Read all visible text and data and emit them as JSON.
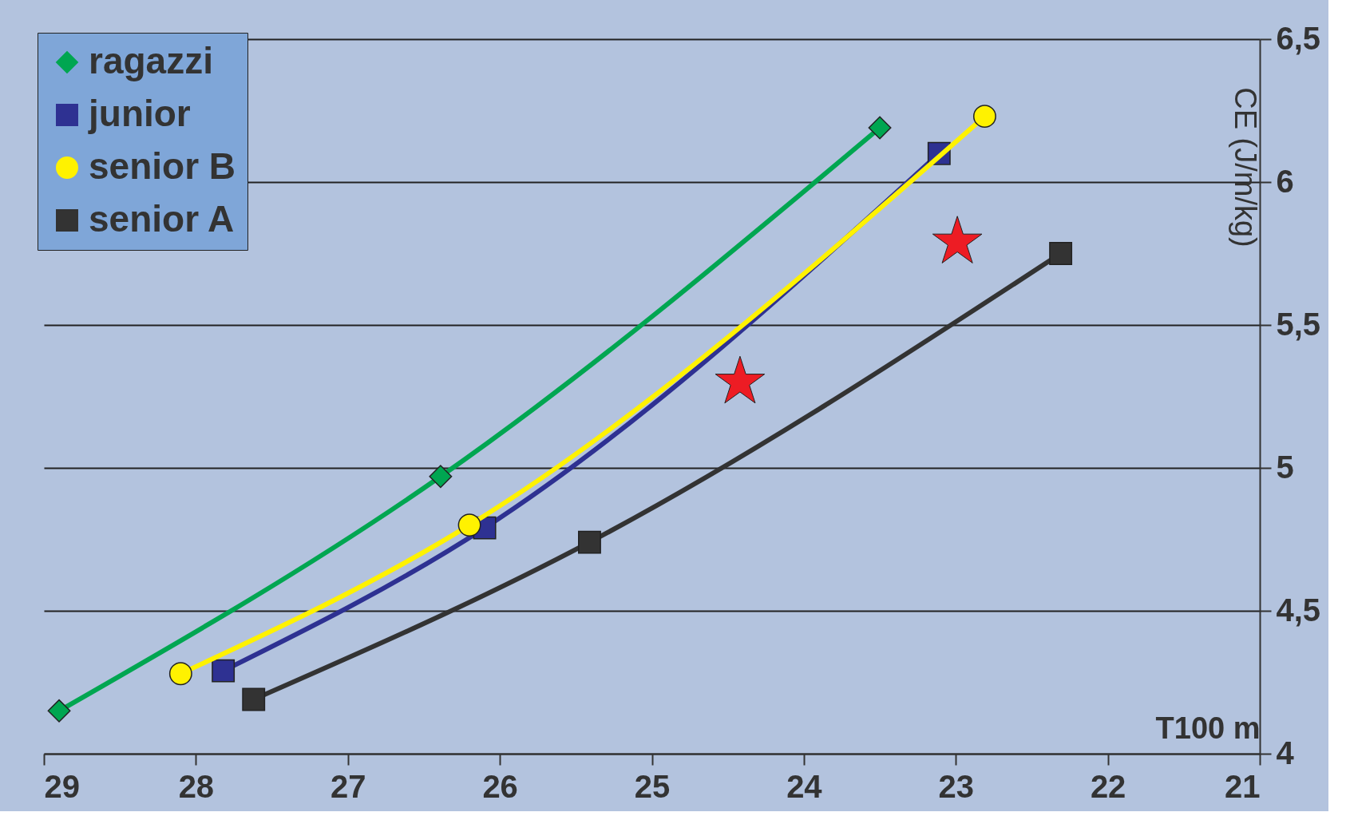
{
  "chart_data": {
    "type": "line",
    "xlabel": "T100 m",
    "ylabel": "CE  (J/m/kg)",
    "xlim": [
      29,
      21
    ],
    "xticks": [
      29,
      28,
      27,
      26,
      25,
      24,
      23,
      22,
      21
    ],
    "ylim": [
      4,
      6.5
    ],
    "yticks": [
      4,
      {
        "value": 4.5,
        "label": "4,5"
      },
      5,
      {
        "value": 5.5,
        "label": "5,5"
      },
      6,
      {
        "value": 6.5,
        "label": "6,5"
      }
    ],
    "grid": "y",
    "legend": "top left",
    "line_style": "solid",
    "series": [
      {
        "name": "ragazzi",
        "color": "#00a651",
        "marker": "diamond",
        "x": [
          28.9,
          26.39,
          23.5
        ],
        "values": [
          4.15,
          4.97,
          6.19
        ]
      },
      {
        "name": "junior",
        "color": "#2e3192",
        "marker": "square",
        "x": [
          27.82,
          26.1,
          23.11
        ],
        "values": [
          4.29,
          4.79,
          6.1
        ]
      },
      {
        "name": "senior B",
        "color": "#fff200",
        "marker": "circle",
        "x": [
          28.1,
          26.2,
          22.81
        ],
        "values": [
          4.28,
          4.8,
          6.23
        ]
      },
      {
        "name": "senior A",
        "color": "#333333",
        "marker": "square",
        "x": [
          27.62,
          25.41,
          22.31
        ],
        "values": [
          4.19,
          4.74,
          5.75
        ]
      },
      {
        "type": "scatter",
        "color": "#ed1c24",
        "marker": "star",
        "x": [
          24.42,
          22.99
        ],
        "values": [
          5.3,
          5.79
        ]
      }
    ]
  }
}
